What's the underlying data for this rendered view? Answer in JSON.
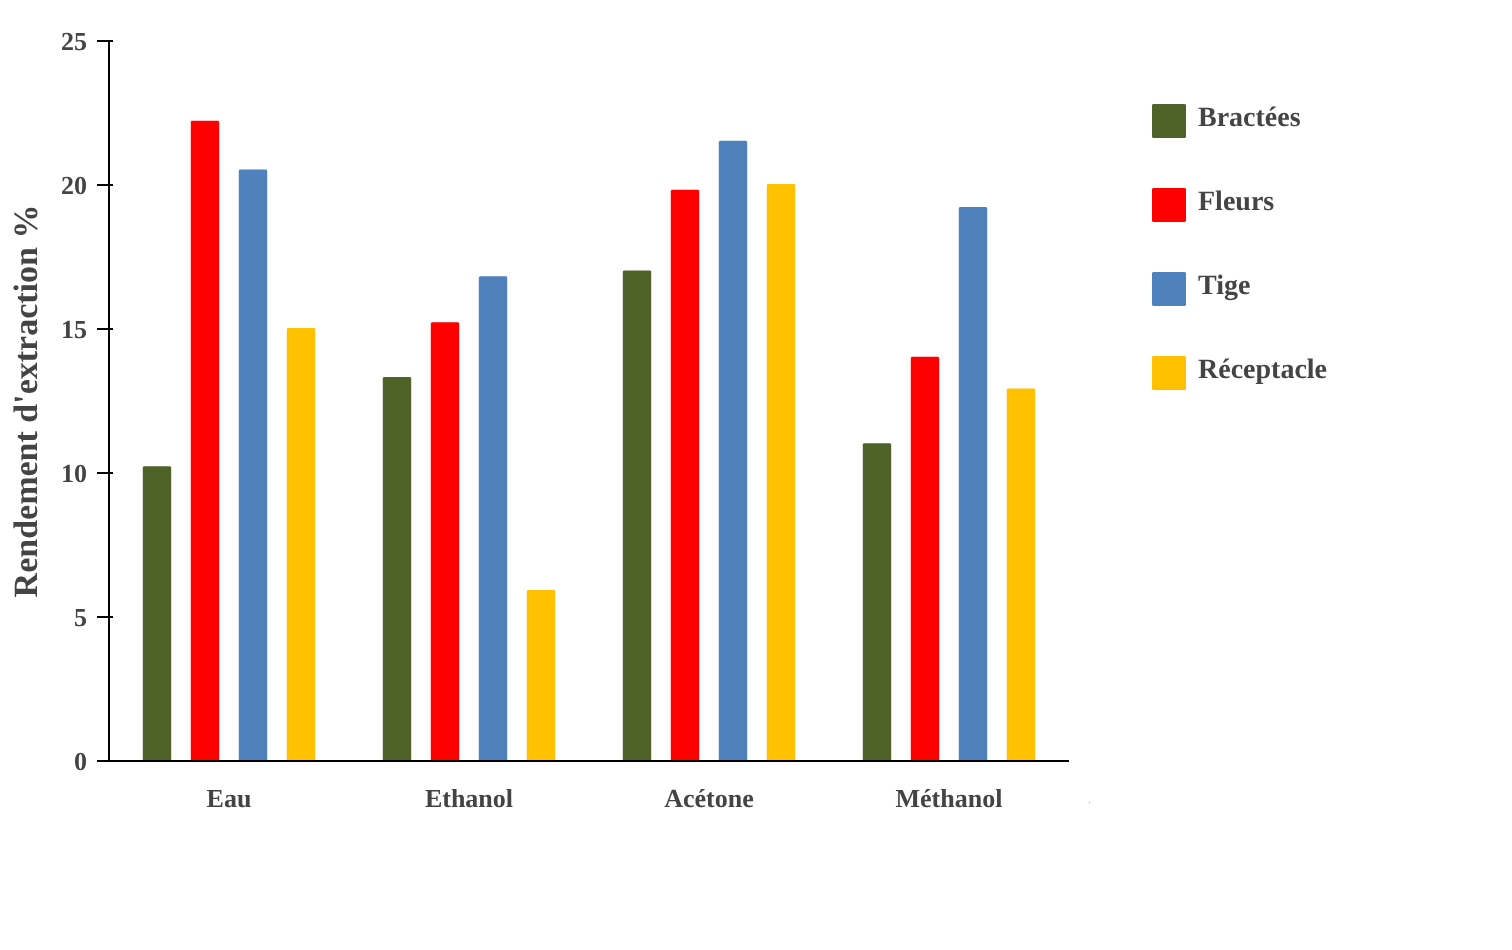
{
  "chart_data": {
    "type": "bar",
    "ylabel": "Rendement d'extraction %",
    "categories": [
      "Eau",
      "Ethanol",
      "Acétone",
      "Méthanol"
    ],
    "series": [
      {
        "name": "Bractées",
        "color": "#4f6228",
        "values": [
          10.2,
          13.3,
          17.0,
          11.0
        ]
      },
      {
        "name": "Fleurs",
        "color": "#ff0000",
        "values": [
          22.2,
          15.2,
          19.8,
          14.0
        ]
      },
      {
        "name": "Tige",
        "color": "#4f81bd",
        "values": [
          20.5,
          16.8,
          21.5,
          19.2
        ]
      },
      {
        "name": "Réceptacle",
        "color": "#ffc000",
        "values": [
          15.0,
          5.9,
          20.0,
          12.9
        ]
      }
    ],
    "ylim": [
      0,
      25
    ],
    "yticks": [
      0,
      5,
      10,
      15,
      20,
      25
    ],
    "grid": false,
    "legend": "right"
  }
}
